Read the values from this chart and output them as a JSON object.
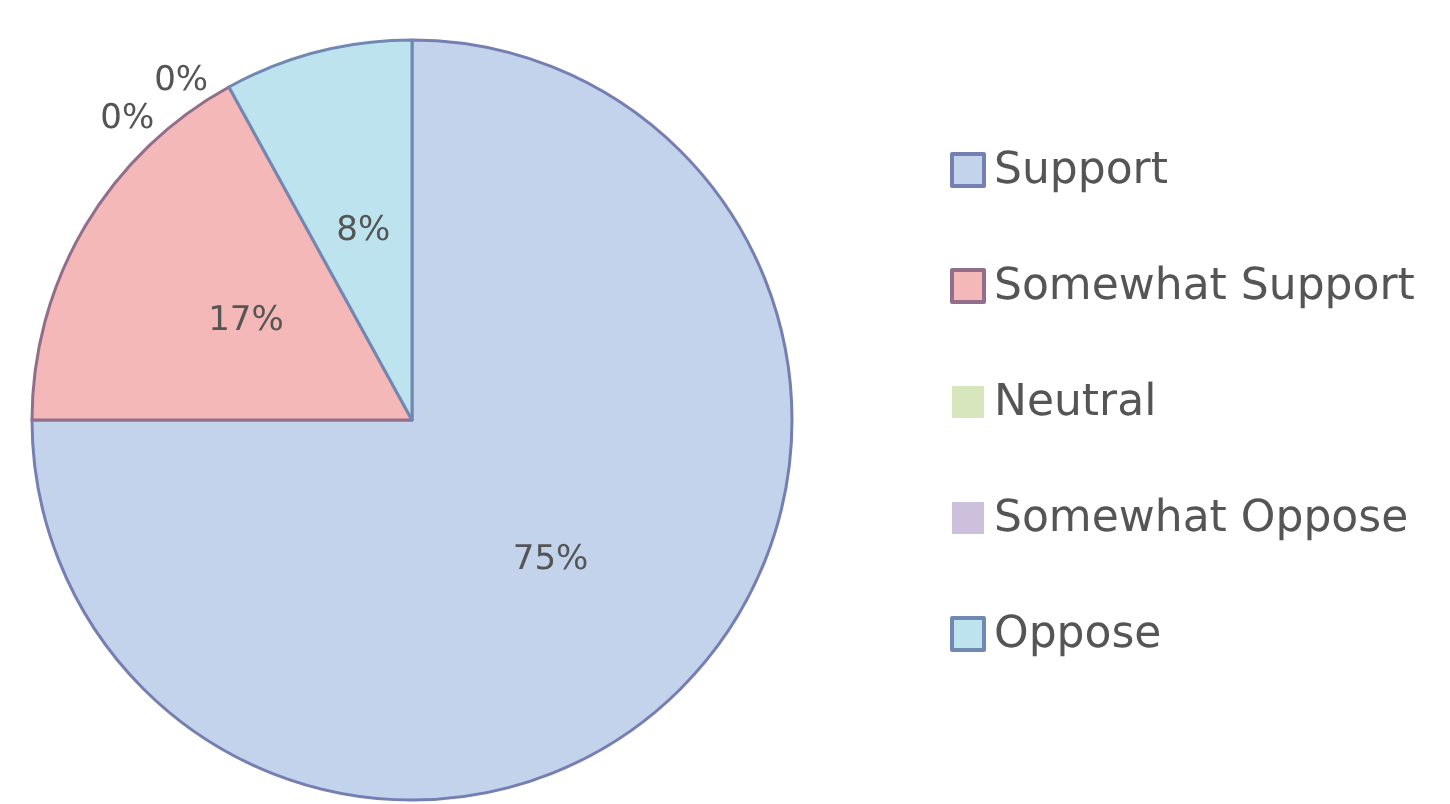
{
  "chart_data": {
    "type": "pie",
    "categories": [
      "Support",
      "Somewhat Support",
      "Neutral",
      "Somewhat Oppose",
      "Oppose"
    ],
    "values": [
      75,
      17,
      0,
      0,
      8
    ],
    "colors": [
      "#c3d3ec",
      "#f5b8b8",
      "#d8e6bd",
      "#cdc0dc",
      "#bde3ee"
    ],
    "value_labels": [
      "75%",
      "17%",
      "0%",
      "0%",
      "8%"
    ],
    "legend": "right"
  }
}
